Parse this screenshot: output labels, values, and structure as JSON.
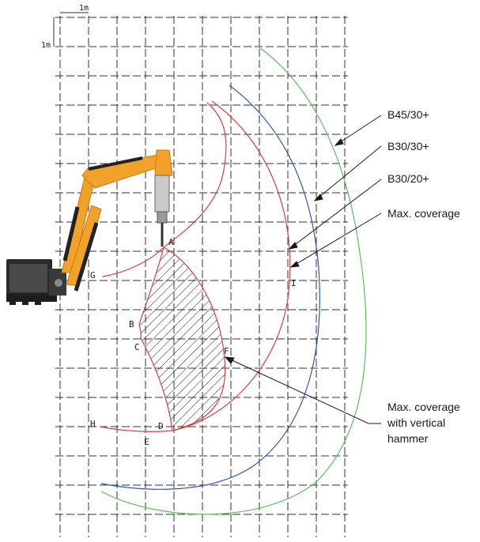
{
  "scale": {
    "x_unit": "1m",
    "y_unit": "1m"
  },
  "curves": [
    {
      "name": "B45/30+",
      "color": "#5cc05a"
    },
    {
      "name": "B30/30+",
      "color": "#2a5bb5"
    },
    {
      "name": "B30/20+",
      "color": "#e23b3b"
    },
    {
      "name": "Max. coverage",
      "color": "#e23b3b"
    }
  ],
  "hatched_label": [
    "Max. coverage",
    "with vertical",
    "hammer"
  ],
  "points": [
    "A",
    "B",
    "C",
    "D",
    "E",
    "F",
    "G",
    "H",
    "I"
  ],
  "colors": {
    "grid": "#333333",
    "boom": "#f0a22a",
    "boom_dark": "#c77a10",
    "machine": "#2b2b2b",
    "hatch": "#222222"
  }
}
